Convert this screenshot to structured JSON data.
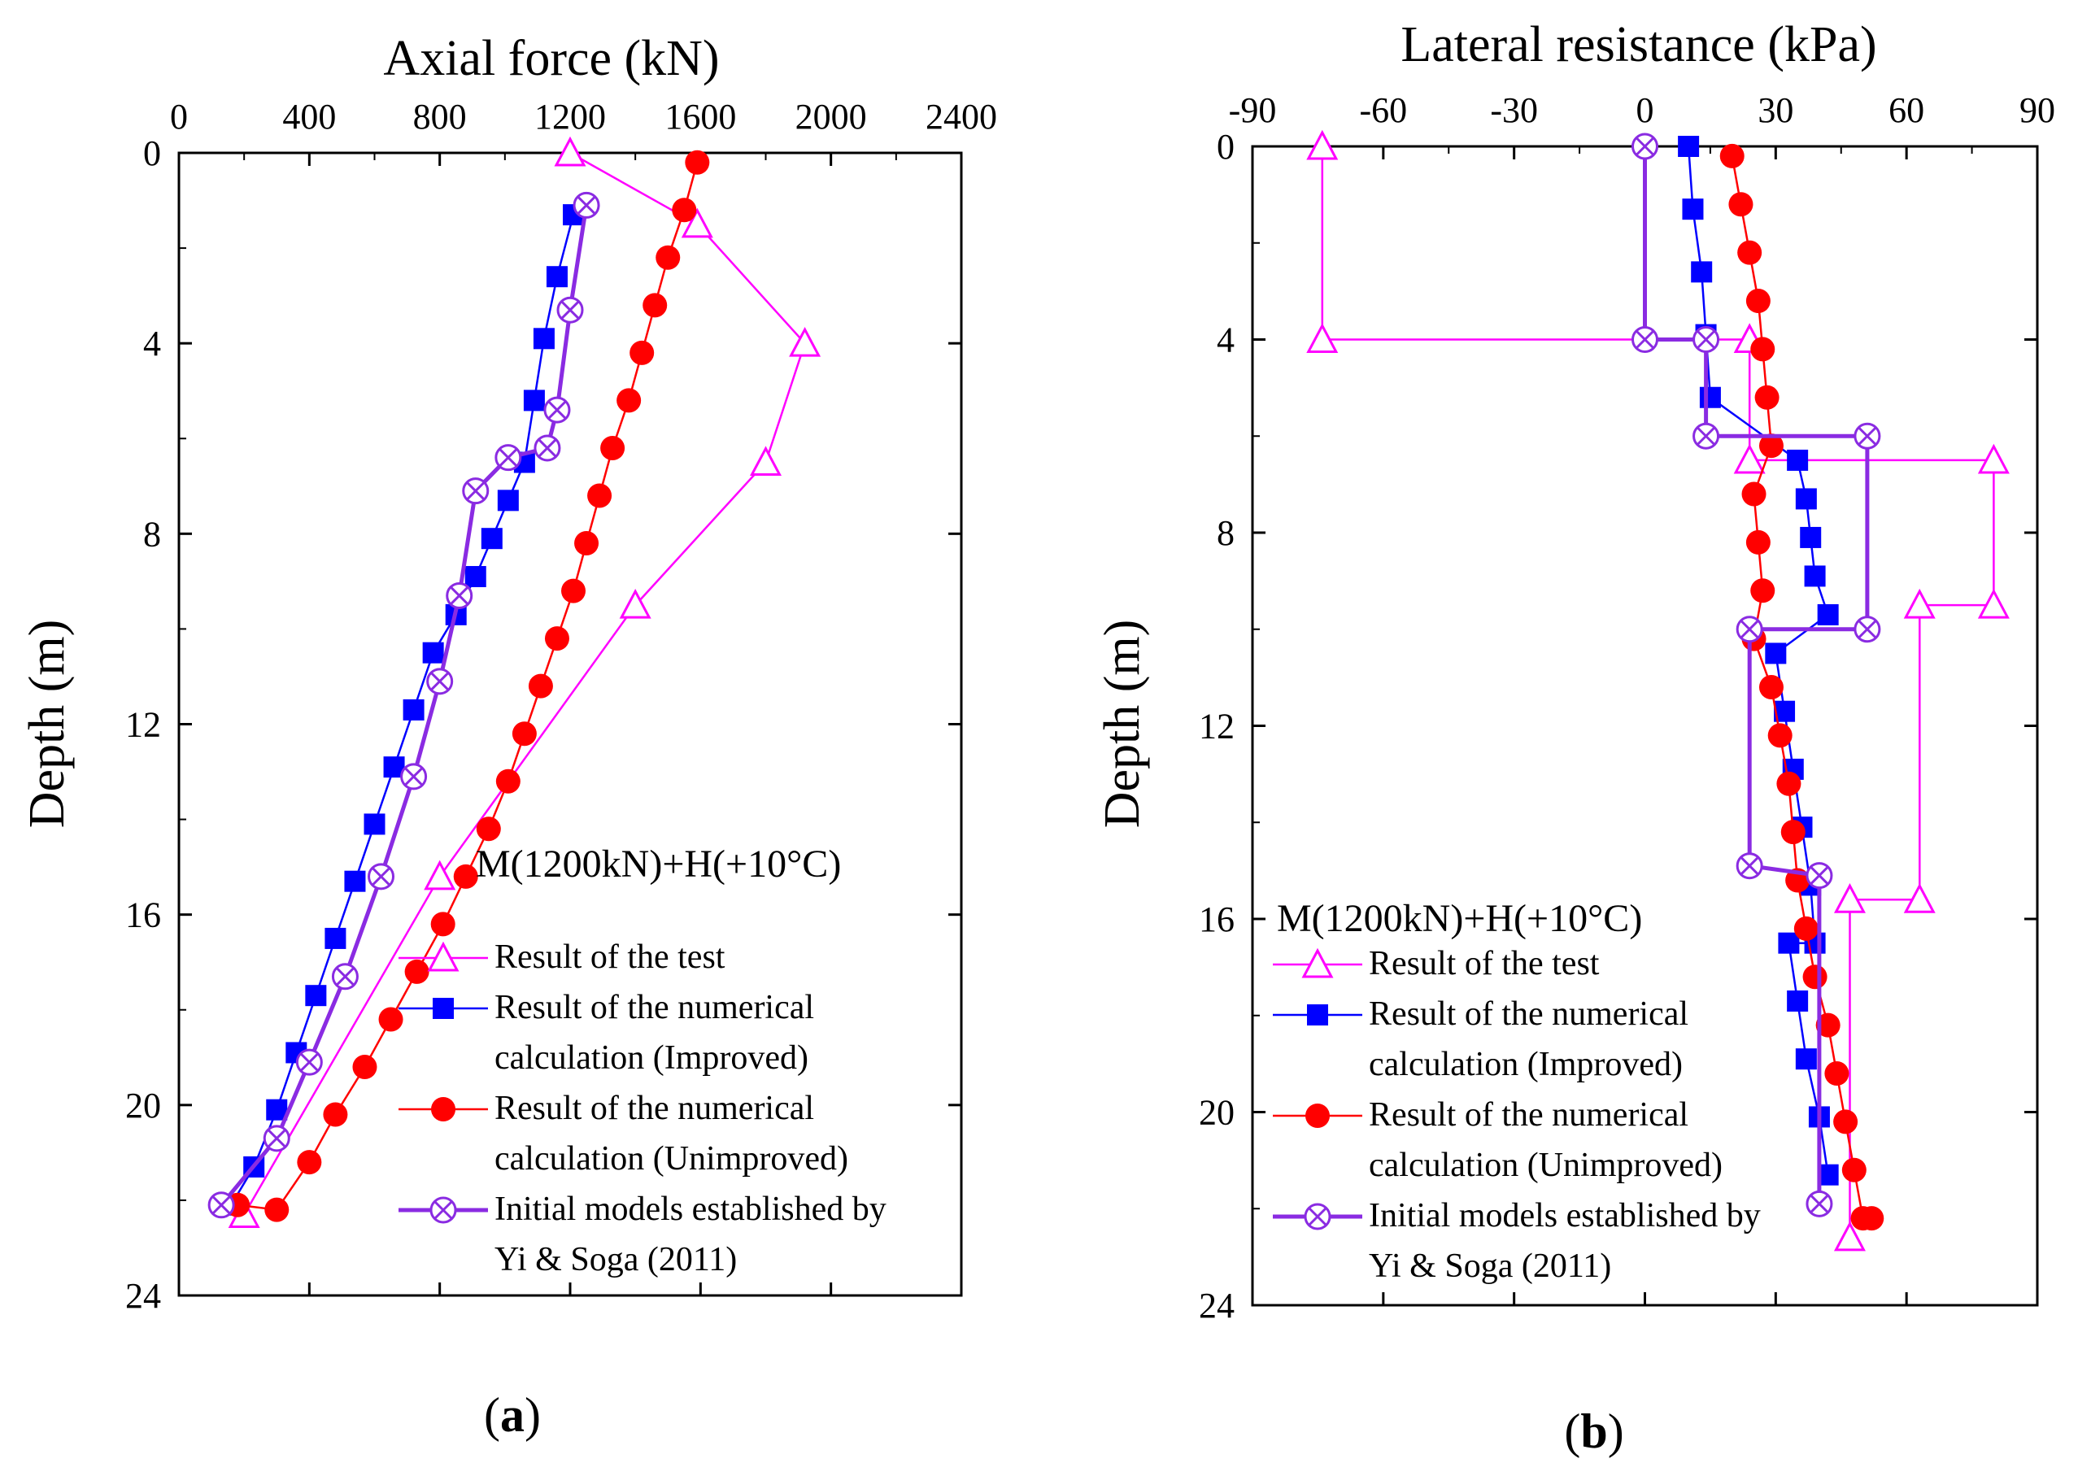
{
  "chart_data": [
    {
      "type": "line",
      "panel_label": "a",
      "xlabel": "Axial force (kN)",
      "ylabel": "Depth (m)",
      "xlim": [
        0,
        2400
      ],
      "ylim": [
        0,
        24
      ],
      "x_axis_position": "top",
      "y_inverted": true,
      "xticks": [
        "0",
        "400",
        "800",
        "1200",
        "1600",
        "2000",
        "2400"
      ],
      "yticks": [
        "0",
        "4",
        "8",
        "12",
        "16",
        "20",
        "24"
      ],
      "annotation": "M(1200kN)+H(+10°C)",
      "legend": {
        "placement": "lower-right",
        "entries": [
          [
            "Result of the test"
          ],
          [
            "Result of the numerical",
            "calculation (Improved)"
          ],
          [
            "Result of the numerical",
            "calculation (Unimproved)"
          ],
          [
            "Initial models established by",
            " Yi & Soga (2011)"
          ]
        ]
      },
      "series": [
        {
          "name": "Result of the test",
          "color": "#ff00ff",
          "marker": "triangle-open",
          "x": [
            1200,
            1590,
            1920,
            1800,
            1400,
            800,
            200
          ],
          "y": [
            0,
            1.5,
            4,
            6.5,
            9.5,
            15.2,
            22.3
          ]
        },
        {
          "name": "Result of the numerical calculation (Improved)",
          "color": "#0000ff",
          "marker": "square-filled",
          "x": [
            1210,
            1160,
            1120,
            1090,
            1060,
            1010,
            960,
            910,
            850,
            780,
            720,
            660,
            600,
            540,
            480,
            420,
            360,
            300,
            230,
            160
          ],
          "y": [
            1.3,
            2.6,
            3.9,
            5.2,
            6.5,
            7.3,
            8.1,
            8.9,
            9.7,
            10.5,
            11.7,
            12.9,
            14.1,
            15.3,
            16.5,
            17.7,
            18.9,
            20.1,
            21.3,
            22.1
          ]
        },
        {
          "name": "Result of the numerical calculation (Unimproved)",
          "color": "#ff0000",
          "marker": "circle-filled",
          "x": [
            1590,
            1550,
            1500,
            1460,
            1420,
            1380,
            1330,
            1290,
            1250,
            1210,
            1160,
            1110,
            1060,
            1010,
            950,
            880,
            810,
            730,
            650,
            570,
            480,
            400,
            300,
            180
          ],
          "y": [
            0.2,
            1.2,
            2.2,
            3.2,
            4.2,
            5.2,
            6.2,
            7.2,
            8.2,
            9.2,
            10.2,
            11.2,
            12.2,
            13.2,
            14.2,
            15.2,
            16.2,
            17.2,
            18.2,
            19.2,
            20.2,
            21.2,
            22.2,
            22.1
          ]
        },
        {
          "name": "Initial models established by Yi & Soga (2011)",
          "color": "#8a2be2",
          "marker": "circle-cross",
          "x": [
            1250,
            1200,
            1160,
            1130,
            1010,
            910,
            860,
            800,
            720,
            620,
            510,
            400,
            300,
            130
          ],
          "y": [
            1.1,
            3.3,
            5.4,
            6.2,
            6.4,
            7.1,
            9.3,
            11.1,
            13.1,
            15.2,
            17.3,
            19.1,
            20.7,
            22.1
          ]
        }
      ]
    },
    {
      "type": "line",
      "panel_label": "b",
      "xlabel": "Lateral resistance (kPa)",
      "ylabel": "Depth (m)",
      "xlim": [
        -90,
        90
      ],
      "ylim": [
        0,
        24
      ],
      "x_axis_position": "top",
      "y_inverted": true,
      "xticks": [
        "-90",
        "-60",
        "-30",
        "0",
        "30",
        "60",
        "90"
      ],
      "yticks": [
        "0",
        "4",
        "8",
        "12",
        "16",
        "20",
        "24"
      ],
      "annotation": "M(1200kN)+H(+10°C)",
      "legend": {
        "placement": "lower-left",
        "entries": [
          [
            "Result of the test"
          ],
          [
            "Result of the numerical",
            "calculation (Improved)"
          ],
          [
            "Result of the numerical",
            "calculation (Unimproved)"
          ],
          [
            "Initial models established by",
            " Yi & Soga (2011)"
          ]
        ]
      },
      "series": [
        {
          "name": "Result of the test",
          "color": "#ff00ff",
          "marker": "triangle-open",
          "step_x": [
            -74,
            -74,
            24,
            24,
            80,
            80,
            63,
            63,
            47,
            47
          ],
          "step_y": [
            0,
            4,
            4,
            6.5,
            6.5,
            9.5,
            9.5,
            15.6,
            15.6,
            22.6
          ],
          "x": [
            -74,
            -74,
            24,
            24,
            80,
            80,
            63,
            63,
            47,
            47
          ],
          "y": [
            0,
            4,
            4,
            6.5,
            6.5,
            9.5,
            9.5,
            15.6,
            15.6,
            22.6
          ]
        },
        {
          "name": "Result of the numerical calculation (Improved)",
          "color": "#0000ff",
          "marker": "square-filled",
          "x": [
            10,
            11,
            13,
            14,
            15,
            35,
            37,
            38,
            39,
            42,
            30,
            32,
            34,
            36,
            38,
            39,
            33,
            35,
            37,
            40,
            42
          ],
          "y": [
            0,
            1.3,
            2.6,
            3.9,
            5.2,
            6.5,
            7.3,
            8.1,
            8.9,
            9.7,
            10.5,
            11.7,
            12.9,
            14.1,
            15.3,
            16.5,
            16.5,
            17.7,
            18.9,
            20.1,
            21.3
          ]
        },
        {
          "name": "Result of the numerical calculation (Unimproved)",
          "color": "#ff0000",
          "marker": "circle-filled",
          "x": [
            20,
            22,
            24,
            26,
            27,
            28,
            29,
            25,
            26,
            27,
            25,
            29,
            31,
            33,
            34,
            35,
            37,
            39,
            42,
            44,
            46,
            48,
            50,
            52
          ],
          "y": [
            0.2,
            1.2,
            2.2,
            3.2,
            4.2,
            5.2,
            6.2,
            7.2,
            8.2,
            9.2,
            10.2,
            11.2,
            12.2,
            13.2,
            14.2,
            15.2,
            16.2,
            17.2,
            18.2,
            19.2,
            20.2,
            21.2,
            22.2,
            22.2
          ]
        },
        {
          "name": "Initial models established by Yi & Soga (2011)",
          "color": "#8a2be2",
          "marker": "circle-cross",
          "step_x": [
            0,
            0,
            14,
            14,
            51,
            51,
            24,
            24,
            40,
            40
          ],
          "step_y": [
            0,
            4,
            4,
            6,
            6,
            10,
            10,
            14.9,
            15.1,
            21.9
          ],
          "x": [
            0,
            0,
            14,
            14,
            51,
            51,
            24,
            24,
            40,
            40
          ],
          "y": [
            0,
            4,
            4,
            6,
            6,
            10,
            10,
            14.9,
            15.1,
            21.9
          ]
        }
      ]
    }
  ]
}
